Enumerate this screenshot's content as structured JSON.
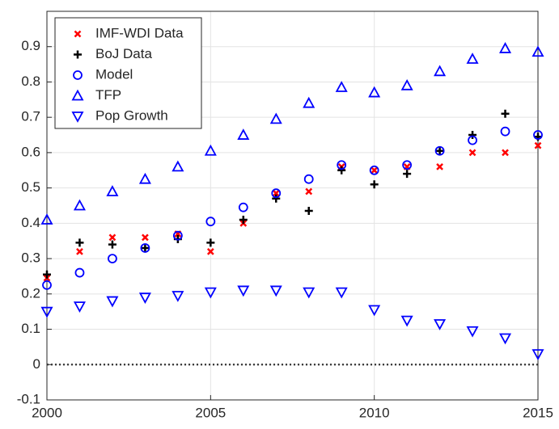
{
  "chart_data": {
    "type": "scatter",
    "x": [
      2000,
      2001,
      2002,
      2003,
      2004,
      2005,
      2006,
      2007,
      2008,
      2009,
      2010,
      2011,
      2012,
      2013,
      2014,
      2015
    ],
    "series": [
      {
        "name": "IMF-WDI Data",
        "color": "#ff0000",
        "marker": "x",
        "values": [
          0.245,
          0.32,
          0.36,
          0.36,
          0.37,
          0.32,
          0.4,
          0.485,
          0.49,
          0.56,
          0.55,
          0.56,
          0.56,
          0.6,
          0.6,
          0.62
        ]
      },
      {
        "name": "BoJ Data",
        "color": "#000000",
        "marker": "+",
        "values": [
          0.255,
          0.345,
          0.34,
          0.33,
          0.355,
          0.345,
          0.41,
          0.47,
          0.435,
          0.55,
          0.51,
          0.54,
          0.605,
          0.65,
          0.71,
          0.645
        ]
      },
      {
        "name": "Model",
        "color": "#0000ff",
        "marker": "o",
        "values": [
          0.225,
          0.26,
          0.3,
          0.33,
          0.365,
          0.405,
          0.445,
          0.485,
          0.525,
          0.565,
          0.55,
          0.565,
          0.605,
          0.635,
          0.66,
          0.65
        ]
      },
      {
        "name": "TFP",
        "color": "#0000ff",
        "marker": "^",
        "values": [
          0.41,
          0.45,
          0.49,
          0.525,
          0.56,
          0.605,
          0.65,
          0.695,
          0.74,
          0.785,
          0.77,
          0.79,
          0.83,
          0.865,
          0.895,
          0.885
        ]
      },
      {
        "name": "Pop Growth",
        "color": "#0000ff",
        "marker": "v",
        "values": [
          0.15,
          0.165,
          0.18,
          0.19,
          0.195,
          0.205,
          0.21,
          0.21,
          0.205,
          0.205,
          0.155,
          0.125,
          0.115,
          0.095,
          0.075,
          0.03
        ]
      }
    ],
    "xlim": [
      2000,
      2015
    ],
    "xticks": [
      2000,
      2005,
      2010,
      2015
    ],
    "ylim": [
      -0.1,
      1.0
    ],
    "yticks": [
      -0.1,
      0,
      0.1,
      0.2,
      0.3,
      0.4,
      0.5,
      0.6,
      0.7,
      0.8,
      0.9
    ],
    "grid": true,
    "reference_line": 0,
    "legend": "upper-left"
  }
}
